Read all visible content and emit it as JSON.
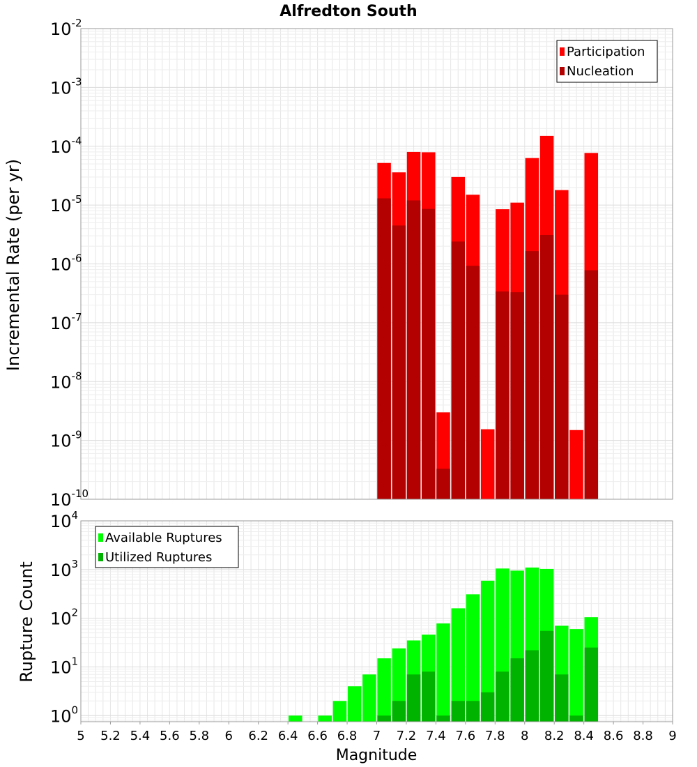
{
  "chart_data": [
    {
      "type": "bar",
      "title": "Alfredton South",
      "xlabel": "",
      "ylabel": "Incremental Rate (per yr)",
      "yscale": "log",
      "xlim": [
        5,
        9
      ],
      "ylim": [
        1e-10,
        0.01
      ],
      "grid": true,
      "legend_position": "top-right",
      "x": [
        7.05,
        7.15,
        7.25,
        7.35,
        7.45,
        7.55,
        7.65,
        7.75,
        7.85,
        7.95,
        8.05,
        8.15,
        8.25,
        8.35,
        8.45
      ],
      "series": [
        {
          "name": "Participation",
          "color": "#ff0000",
          "values": [
            5.2e-05,
            3.6e-05,
            8e-05,
            7.9e-05,
            3e-09,
            3e-05,
            1.5e-05,
            1.55e-09,
            8.5e-06,
            1.1e-05,
            6.3e-05,
            0.00015,
            1.8e-05,
            1.5e-09,
            7.7e-05
          ]
        },
        {
          "name": "Nucleation",
          "color": "#b30000",
          "values": [
            1.3e-05,
            4.5e-06,
            1.2e-05,
            8.6e-06,
            3.3e-10,
            2.4e-06,
            9.3e-07,
            null,
            3.4e-07,
            3.3e-07,
            1.65e-06,
            3.1e-06,
            3e-07,
            null,
            7.8e-07
          ]
        }
      ],
      "yticks": [
        {
          "base": "10",
          "exp": "-2"
        },
        {
          "base": "10",
          "exp": "-3"
        },
        {
          "base": "10",
          "exp": "-4"
        },
        {
          "base": "10",
          "exp": "-5"
        },
        {
          "base": "10",
          "exp": "-6"
        },
        {
          "base": "10",
          "exp": "-7"
        },
        {
          "base": "10",
          "exp": "-8"
        },
        {
          "base": "10",
          "exp": "-9"
        },
        {
          "base": "10",
          "exp": "-10"
        }
      ]
    },
    {
      "type": "bar",
      "title": "",
      "xlabel": "Magnitude",
      "ylabel": "Rupture Count",
      "yscale": "log",
      "xlim": [
        5,
        9
      ],
      "ylim": [
        0.75,
        10000.0
      ],
      "grid": true,
      "legend_position": "top-left",
      "x": [
        6.45,
        6.65,
        6.75,
        6.85,
        6.95,
        7.05,
        7.15,
        7.25,
        7.35,
        7.45,
        7.55,
        7.65,
        7.75,
        7.85,
        7.95,
        8.05,
        8.15,
        8.25,
        8.35,
        8.45
      ],
      "series": [
        {
          "name": "Available Ruptures",
          "color": "#00ff00",
          "values": [
            1,
            1,
            2,
            4,
            7,
            15,
            24,
            35,
            46,
            78,
            160,
            310,
            590,
            1050,
            950,
            1100,
            1030,
            70,
            60,
            105
          ]
        },
        {
          "name": "Utilized Ruptures",
          "color": "#00b300",
          "values": [
            null,
            null,
            null,
            null,
            null,
            1,
            2,
            7,
            8,
            1,
            2,
            2,
            3,
            8,
            15,
            22,
            55,
            7,
            1,
            25
          ]
        }
      ],
      "yticks": [
        {
          "base": "10",
          "exp": "4"
        },
        {
          "base": "10",
          "exp": "3"
        },
        {
          "base": "10",
          "exp": "2"
        },
        {
          "base": "10",
          "exp": "1"
        },
        {
          "base": "10",
          "exp": "0"
        }
      ]
    }
  ],
  "xticks": [
    "5",
    "5.2",
    "5.4",
    "5.6",
    "5.8",
    "6",
    "6.2",
    "6.4",
    "6.6",
    "6.8",
    "7",
    "7.2",
    "7.4",
    "7.6",
    "7.8",
    "8",
    "8.2",
    "8.4",
    "8.6",
    "8.8",
    "9"
  ]
}
